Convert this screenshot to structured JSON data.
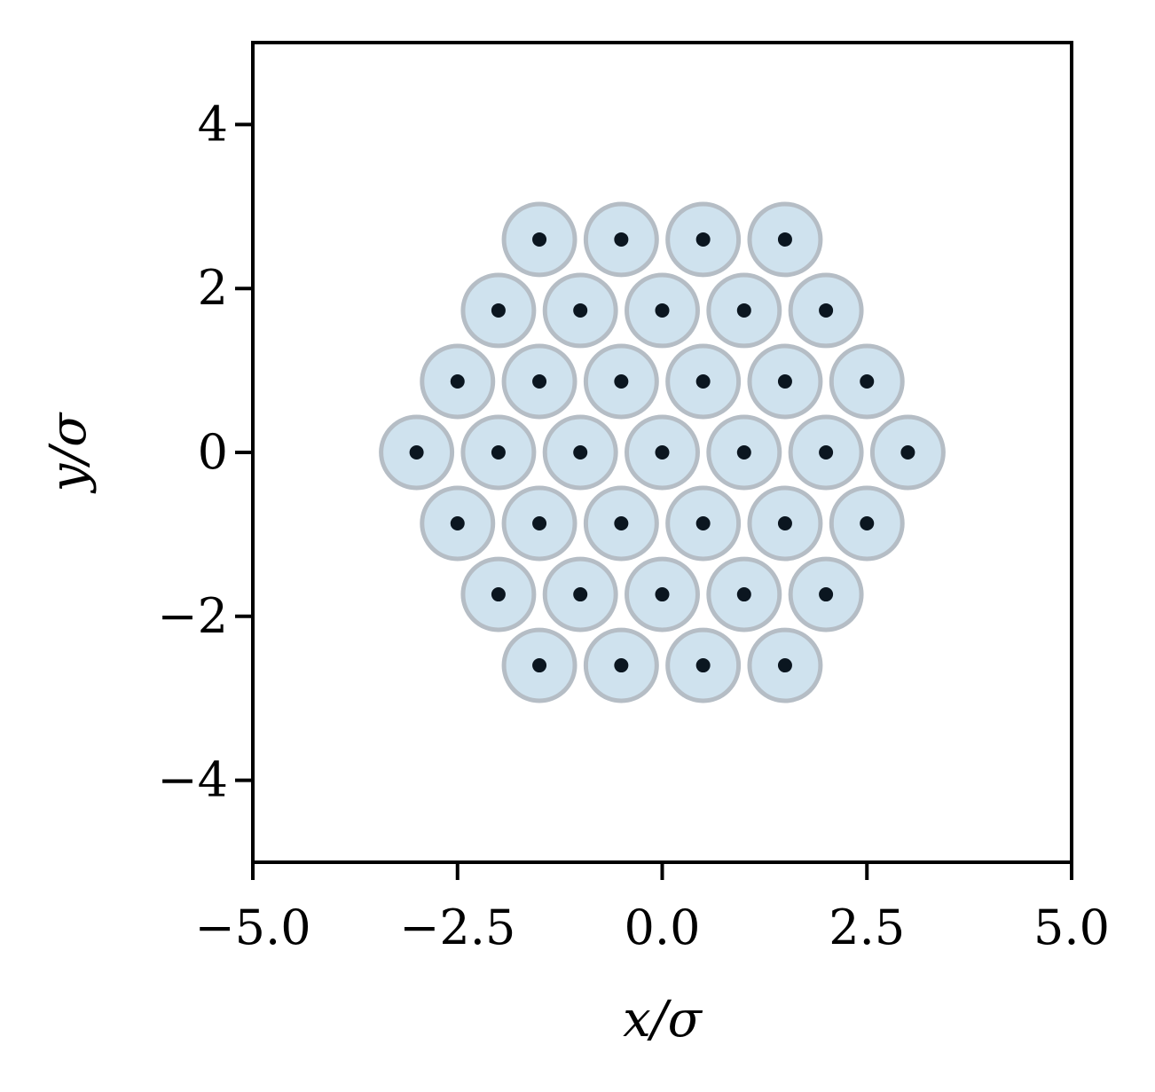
{
  "chart_data": {
    "type": "scatter",
    "title": "",
    "xlabel": "x/σ",
    "ylabel": "y/σ",
    "xlim": [
      -5.0,
      5.0
    ],
    "ylim": [
      -5.0,
      5.0
    ],
    "xticks": [
      -5.0,
      -2.5,
      0.0,
      2.5,
      5.0
    ],
    "xtick_labels": [
      "−5.0",
      "−2.5",
      "0.0",
      "2.5",
      "5.0"
    ],
    "yticks": [
      -4,
      -2,
      0,
      2,
      4
    ],
    "ytick_labels": [
      "−4",
      "−2",
      "0",
      "2",
      "4"
    ],
    "grid": false,
    "particle_diameter": 0.866,
    "colors": {
      "particle_fill": "#cfe2ee",
      "particle_edge": "#b5bdc5",
      "center_dot": "#0b1620",
      "axes": "#000000"
    },
    "points": [
      {
        "x": -1.5,
        "y": 2.598
      },
      {
        "x": -0.5,
        "y": 2.598
      },
      {
        "x": 0.5,
        "y": 2.598
      },
      {
        "x": 1.5,
        "y": 2.598
      },
      {
        "x": -2.0,
        "y": 1.732
      },
      {
        "x": -1.0,
        "y": 1.732
      },
      {
        "x": 0.0,
        "y": 1.732
      },
      {
        "x": 1.0,
        "y": 1.732
      },
      {
        "x": 2.0,
        "y": 1.732
      },
      {
        "x": -2.5,
        "y": 0.866
      },
      {
        "x": -1.5,
        "y": 0.866
      },
      {
        "x": -0.5,
        "y": 0.866
      },
      {
        "x": 0.5,
        "y": 0.866
      },
      {
        "x": 1.5,
        "y": 0.866
      },
      {
        "x": 2.5,
        "y": 0.866
      },
      {
        "x": -3.0,
        "y": 0.0
      },
      {
        "x": -2.0,
        "y": 0.0
      },
      {
        "x": -1.0,
        "y": 0.0
      },
      {
        "x": 0.0,
        "y": 0.0
      },
      {
        "x": 1.0,
        "y": 0.0
      },
      {
        "x": 2.0,
        "y": 0.0
      },
      {
        "x": 3.0,
        "y": 0.0
      },
      {
        "x": -2.5,
        "y": -0.866
      },
      {
        "x": -1.5,
        "y": -0.866
      },
      {
        "x": -0.5,
        "y": -0.866
      },
      {
        "x": 0.5,
        "y": -0.866
      },
      {
        "x": 1.5,
        "y": -0.866
      },
      {
        "x": 2.5,
        "y": -0.866
      },
      {
        "x": -2.0,
        "y": -1.732
      },
      {
        "x": -1.0,
        "y": -1.732
      },
      {
        "x": 0.0,
        "y": -1.732
      },
      {
        "x": 1.0,
        "y": -1.732
      },
      {
        "x": 2.0,
        "y": -1.732
      },
      {
        "x": -1.5,
        "y": -2.598
      },
      {
        "x": -0.5,
        "y": -2.598
      },
      {
        "x": 0.5,
        "y": -2.598
      },
      {
        "x": 1.5,
        "y": -2.598
      }
    ]
  }
}
